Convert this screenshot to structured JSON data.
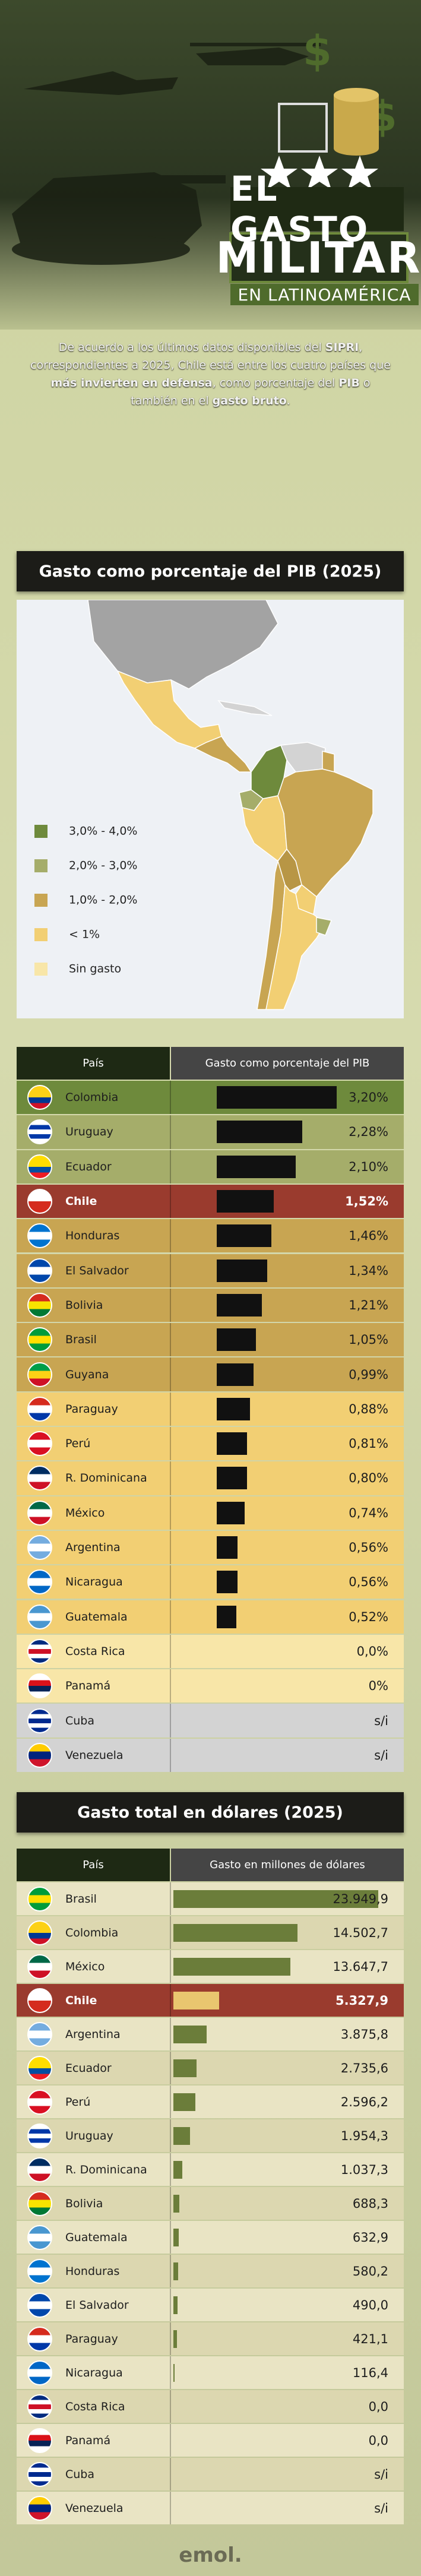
{
  "header": {
    "title_1": "EL GASTO",
    "title_2": "MILITAR",
    "title_3": "EN LATINOAMÉRICA",
    "intro": [
      {
        "text": "De acuerdo a los últimos datos disponibles del ",
        "bold": false
      },
      {
        "text": "SIPRI",
        "bold": true
      },
      {
        "text": ", correspondientes a 2025, Chile está entre los cuatro países que ",
        "bold": false
      },
      {
        "text": "más invierten en defensa",
        "bold": true
      },
      {
        "text": ", como porcentaje del ",
        "bold": false
      },
      {
        "text": "PIB",
        "bold": true
      },
      {
        "text": " o también en el ",
        "bold": false
      },
      {
        "text": "gasto bruto",
        "bold": true
      },
      {
        "text": ".",
        "bold": false
      }
    ]
  },
  "pib_section": {
    "title": "Gasto como porcentaje del PIB (2025)",
    "legend": [
      {
        "label": "3,0% - 4,0%",
        "color": "#6e8a3c"
      },
      {
        "label": "2,0% - 3,0%",
        "color": "#a5ad6a"
      },
      {
        "label": "1,0% - 2,0%",
        "color": "#c8a552"
      },
      {
        "label": "< 1%",
        "color": "#f2cf73"
      },
      {
        "label": "Sin gasto",
        "color": "#f8e6a8"
      }
    ],
    "columns": [
      "País",
      "Gasto como porcentaje del PIB"
    ],
    "bar_color": "#111111",
    "rows": [
      {
        "country": "Colombia",
        "value": 3.2,
        "label": "3,20%",
        "color": "#6e8a3c"
      },
      {
        "country": "Uruguay",
        "value": 2.28,
        "label": "2,28%",
        "color": "#a5ad6a"
      },
      {
        "country": "Ecuador",
        "value": 2.1,
        "label": "2,10%",
        "color": "#a5ad6a"
      },
      {
        "country": "Chile",
        "value": 1.52,
        "label": "1,52%",
        "color": "#9a3b2e"
      },
      {
        "country": "Honduras",
        "value": 1.46,
        "label": "1,46%",
        "color": "#c8a552"
      },
      {
        "country": "El Salvador",
        "value": 1.34,
        "label": "1,34%",
        "color": "#c8a552"
      },
      {
        "country": "Bolivia",
        "value": 1.21,
        "label": "1,21%",
        "color": "#c8a552"
      },
      {
        "country": "Brasil",
        "value": 1.05,
        "label": "1,05%",
        "color": "#c8a552"
      },
      {
        "country": "Guyana",
        "value": 0.99,
        "label": "0,99%",
        "color": "#c8a552"
      },
      {
        "country": "Paraguay",
        "value": 0.88,
        "label": "0,88%",
        "color": "#f2cf73"
      },
      {
        "country": "Perú",
        "value": 0.81,
        "label": "0,81%",
        "color": "#f2cf73"
      },
      {
        "country": "R. Dominicana",
        "value": 0.8,
        "label": "0,80%",
        "color": "#f2cf73"
      },
      {
        "country": "México",
        "value": 0.74,
        "label": "0,74%",
        "color": "#f2cf73"
      },
      {
        "country": "Argentina",
        "value": 0.56,
        "label": "0,56%",
        "color": "#f2cf73"
      },
      {
        "country": "Nicaragua",
        "value": 0.56,
        "label": "0,56%",
        "color": "#f2cf73"
      },
      {
        "country": "Guatemala",
        "value": 0.52,
        "label": "0,52%",
        "color": "#f2cf73"
      },
      {
        "country": "Costa Rica",
        "value": 0,
        "label": "0,0%",
        "color": "#f8e6a8"
      },
      {
        "country": "Panamá",
        "value": 0,
        "label": "0%",
        "color": "#f8e6a8"
      },
      {
        "country": "Cuba",
        "value": null,
        "label": "s/i",
        "color": "#d3d3d3"
      },
      {
        "country": "Venezuela",
        "value": null,
        "label": "s/i",
        "color": "#d3d3d3"
      }
    ]
  },
  "usd_section": {
    "title": "Gasto total en dólares (2025)",
    "columns": [
      "País",
      "Gasto en millones de dólares"
    ],
    "bar_color": "#6b7d3a",
    "rows": [
      {
        "country": "Brasil",
        "value": 23949.9,
        "label": "23.949,9",
        "color": "#e9e4c4"
      },
      {
        "country": "Colombia",
        "value": 14502.7,
        "label": "14.502,7",
        "color": "#dcd7b0"
      },
      {
        "country": "México",
        "value": 13647.7,
        "label": "13.647,7",
        "color": "#e9e4c4"
      },
      {
        "country": "Chile",
        "value": 5327.9,
        "label": "5.327,9",
        "color": "#9a3b2e",
        "bar_color": "#e9c66f"
      },
      {
        "country": "Argentina",
        "value": 3875.8,
        "label": "3.875,8",
        "color": "#e9e4c4"
      },
      {
        "country": "Ecuador",
        "value": 2735.6,
        "label": "2.735,6",
        "color": "#dcd7b0"
      },
      {
        "country": "Perú",
        "value": 2596.2,
        "label": "2.596,2",
        "color": "#e9e4c4"
      },
      {
        "country": "Uruguay",
        "value": 1954.3,
        "label": "1.954,3",
        "color": "#dcd7b0"
      },
      {
        "country": "R. Dominicana",
        "value": 1037.3,
        "label": "1.037,3",
        "color": "#e9e4c4"
      },
      {
        "country": "Bolivia",
        "value": 688.3,
        "label": "688,3",
        "color": "#dcd7b0"
      },
      {
        "country": "Guatemala",
        "value": 632.9,
        "label": "632,9",
        "color": "#e9e4c4"
      },
      {
        "country": "Honduras",
        "value": 580.2,
        "label": "580,2",
        "color": "#dcd7b0"
      },
      {
        "country": "El Salvador",
        "value": 490.0,
        "label": "490,0",
        "color": "#e9e4c4"
      },
      {
        "country": "Paraguay",
        "value": 421.1,
        "label": "421,1",
        "color": "#dcd7b0"
      },
      {
        "country": "Nicaragua",
        "value": 116.4,
        "label": "116,4",
        "color": "#e9e4c4"
      },
      {
        "country": "Costa Rica",
        "value": 0,
        "label": "0,0",
        "color": "#dcd7b0"
      },
      {
        "country": "Panamá",
        "value": 0,
        "label": "0,0",
        "color": "#e9e4c4"
      },
      {
        "country": "Cuba",
        "value": null,
        "label": "s/i",
        "color": "#dcd7b0"
      },
      {
        "country": "Venezuela",
        "value": null,
        "label": "s/i",
        "color": "#e9e4c4"
      }
    ]
  },
  "footer": {
    "logo": "emol."
  }
}
